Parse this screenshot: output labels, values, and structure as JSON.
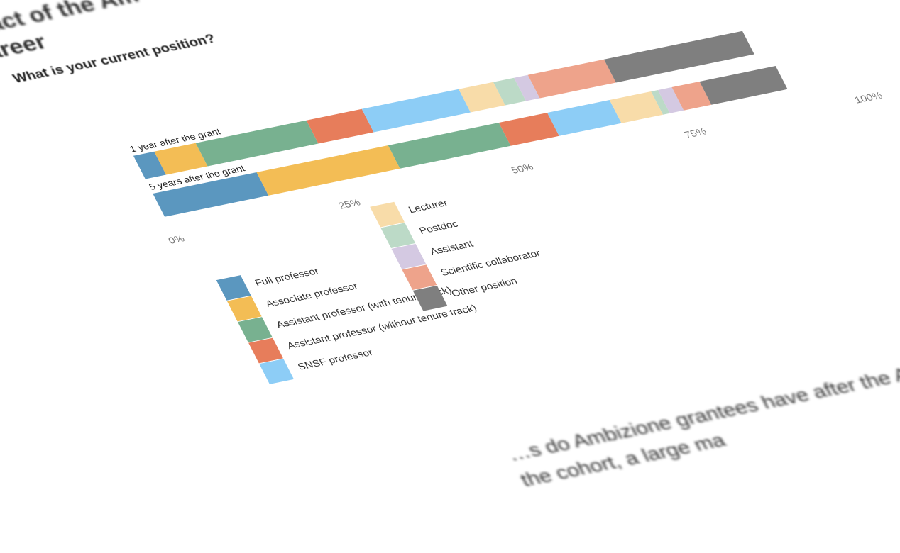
{
  "page": {
    "heading_line1": "pact of the Am",
    "heading_line2": "areer",
    "body_line1": "…s do Ambizione grantees have after the Ambizione",
    "body_line2": "the cohort, a large ma"
  },
  "chart_data": {
    "type": "bar",
    "stacked": true,
    "orientation": "horizontal",
    "title": "What is your current position?",
    "categories": [
      "1 year after the grant",
      "5 years after the grant"
    ],
    "xlim": [
      0,
      100
    ],
    "xticks": [
      "0%",
      "25%",
      "50%",
      "75%",
      "100%"
    ],
    "legend_position": "bottom",
    "series": [
      {
        "name": "Full professor",
        "color": "#5b97bf",
        "values": [
          3,
          15
        ]
      },
      {
        "name": "Associate professor",
        "color": "#f3bd55",
        "values": [
          6,
          19
        ]
      },
      {
        "name": "Assistant professor (with tenure track)",
        "color": "#78b190",
        "values": [
          16,
          16
        ]
      },
      {
        "name": "Assistant professor (without tenure track)",
        "color": "#e77d5b",
        "values": [
          8,
          7
        ]
      },
      {
        "name": "SNSF professor",
        "color": "#8dcdf6",
        "values": [
          14,
          9
        ]
      },
      {
        "name": "Lecturer",
        "color": "#f8dca9",
        "values": [
          5,
          6
        ]
      },
      {
        "name": "Postdoc",
        "color": "#bcdac7",
        "values": [
          3,
          1
        ]
      },
      {
        "name": "Assistant",
        "color": "#d4c9e2",
        "values": [
          2,
          2
        ]
      },
      {
        "name": "Scientific collaborator",
        "color": "#eea38b",
        "values": [
          11,
          4
        ]
      },
      {
        "name": "Other position",
        "color": "#7f7f7f",
        "values": [
          20,
          11
        ]
      }
    ]
  }
}
